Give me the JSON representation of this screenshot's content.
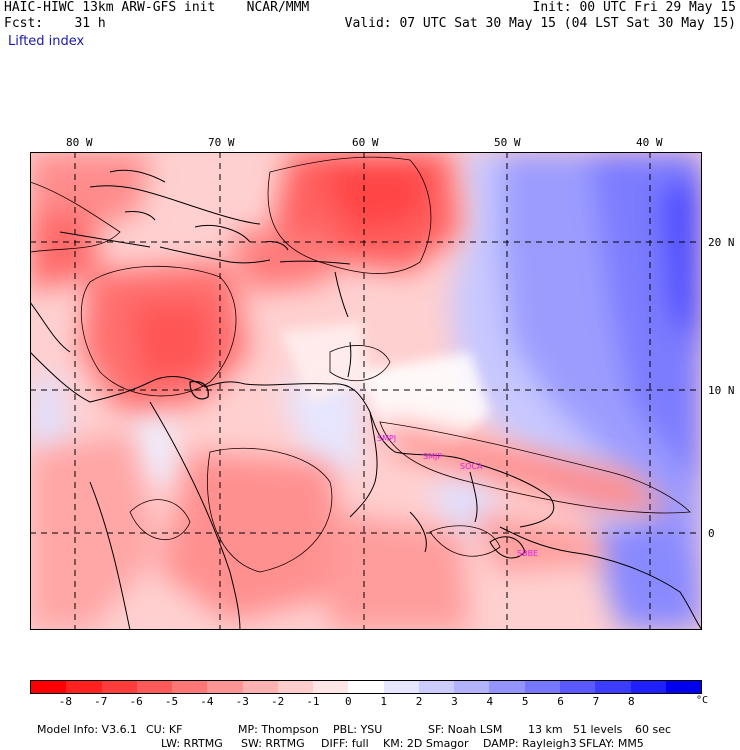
{
  "header": {
    "model_title": "HAIC-HIWC 13km ARW-GFS init",
    "org": "NCAR/MMM",
    "fcst_label": "Fcst:",
    "fcst_value": "31 h",
    "init": "Init: 00 UTC Fri 29 May 15",
    "valid": "Valid: 07 UTC Sat 30 May 15 (04 LST Sat 30 May 15)",
    "variable": "Lifted index"
  },
  "map": {
    "lon_labels": [
      "80 W",
      "70 W",
      "60 W",
      "50 W",
      "40 W"
    ],
    "lat_labels": [
      "20 N",
      "10 N",
      "0"
    ],
    "station_labels": [
      "SMPJ",
      "SMJP",
      "SOCA",
      "SBBE"
    ],
    "station_color": "#e020e0"
  },
  "colorbar": {
    "colors": [
      "#ff0000",
      "#ff2020",
      "#ff3c3c",
      "#ff5a5a",
      "#ff7676",
      "#ff9494",
      "#ffb2b2",
      "#ffcccc",
      "#ffe6e6",
      "#ffffff",
      "#e6e6ff",
      "#ccccff",
      "#b2b2ff",
      "#9494ff",
      "#7676ff",
      "#5a5aff",
      "#3c3cff",
      "#2020ff",
      "#0000ee"
    ],
    "ticks": [
      "-8",
      "-7",
      "-6",
      "-5",
      "-4",
      "-3",
      "-2",
      "-1",
      "0",
      "1",
      "2",
      "3",
      "4",
      "5",
      "6",
      "7",
      "8"
    ],
    "unit": "°C"
  },
  "model_info": {
    "line1": [
      "Model Info: V3.6.1",
      "CU: KF",
      "MP: Thompson",
      "PBL: YSU",
      "SF: Noah LSM",
      "13 km",
      "51 levels",
      "60 sec"
    ],
    "line2": [
      "LW: RRTMG",
      "SW: RRTMG",
      "DIFF: full",
      "KM: 2D Smagor",
      "DAMP: Rayleigh3",
      "SFLAY: MM5"
    ]
  }
}
